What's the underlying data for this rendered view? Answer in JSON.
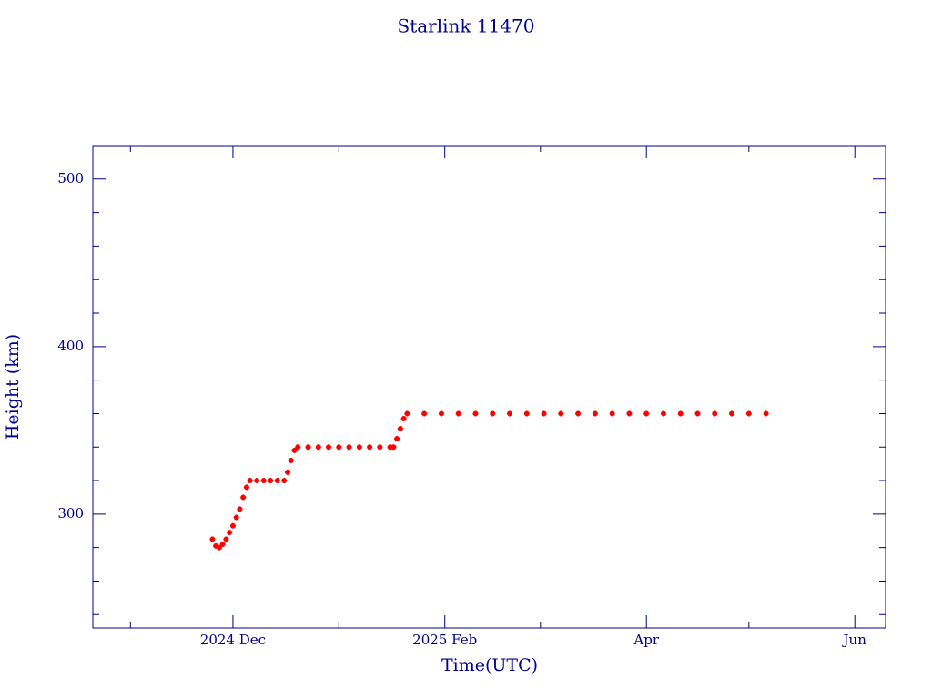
{
  "chart_data": {
    "type": "scatter",
    "title": "Starlink 11470",
    "xlabel": "Time(UTC)",
    "ylabel": "Height (km)",
    "xlim": [
      -41,
      191
    ],
    "xticks": [
      {
        "value": 0,
        "label": "2024 Dec"
      },
      {
        "value": 62,
        "label": "2025 Feb"
      },
      {
        "value": 121,
        "label": "Apr"
      },
      {
        "value": 182,
        "label": "Jun"
      }
    ],
    "xminor": [
      -30,
      31,
      90,
      151
    ],
    "ylim": [
      232,
      520
    ],
    "yticks": [
      300,
      400,
      500
    ],
    "yminor": [
      240,
      260,
      280,
      320,
      340,
      360,
      380,
      420,
      440,
      460,
      480,
      520
    ],
    "color": "#ff0000",
    "x": [
      -6,
      -5,
      -4,
      -3,
      -2,
      -1,
      0,
      1,
      2,
      3,
      4,
      5,
      7,
      9,
      11,
      13,
      15,
      16,
      17,
      18,
      19,
      22,
      25,
      28,
      31,
      34,
      37,
      40,
      43,
      46,
      47,
      48,
      49,
      50,
      51,
      56,
      61,
      66,
      71,
      76,
      81,
      86,
      91,
      96,
      101,
      106,
      111,
      116,
      121,
      126,
      131,
      136,
      141,
      146,
      151,
      156
    ],
    "values": [
      285,
      281,
      280,
      282,
      285,
      289,
      293,
      298,
      303,
      310,
      316,
      320,
      320,
      320,
      320,
      320,
      320,
      325,
      332,
      338,
      340,
      340,
      340,
      340,
      340,
      340,
      340,
      340,
      340,
      340,
      340,
      345,
      351,
      357,
      360,
      360,
      360,
      360,
      360,
      360,
      360,
      360,
      360,
      360,
      360,
      360,
      360,
      360,
      360,
      360,
      360,
      360,
      360,
      360,
      360,
      360
    ]
  }
}
